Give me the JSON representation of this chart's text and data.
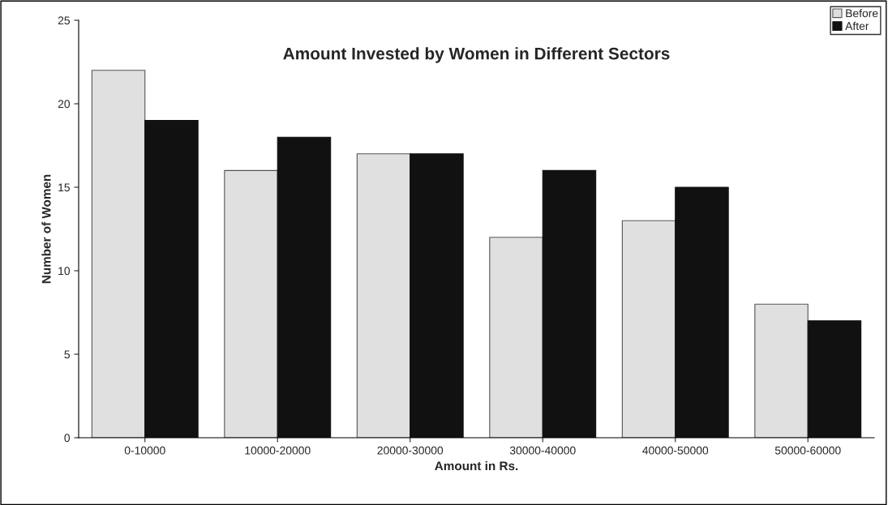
{
  "chart_data": {
    "type": "bar",
    "title": "Amount Invested by Women in Different Sectors",
    "xlabel": "Amount in Rs.",
    "ylabel": "Number of Women",
    "categories": [
      "0-10000",
      "10000-20000",
      "20000-30000",
      "30000-40000",
      "40000-50000",
      "50000-60000"
    ],
    "series": [
      {
        "name": "Before",
        "color": "#e0e0e0",
        "values": [
          22,
          16,
          17,
          12,
          13,
          8
        ]
      },
      {
        "name": "After",
        "color": "#111111",
        "values": [
          19,
          18,
          17,
          16,
          15,
          7
        ]
      }
    ],
    "ylim": [
      0,
      25
    ],
    "yticks": [
      0,
      5,
      10,
      15,
      20,
      25
    ],
    "grid": false,
    "legend": "top right"
  }
}
